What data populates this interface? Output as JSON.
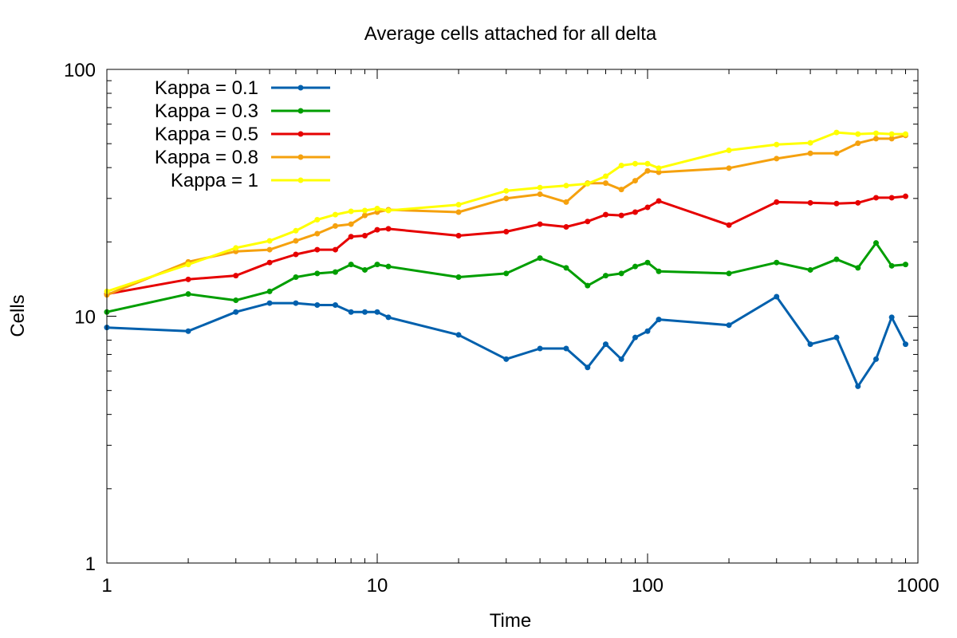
{
  "chart_data": {
    "type": "line",
    "title": "Average cells attached for all delta",
    "xlabel": "Time",
    "ylabel": "Cells",
    "xscale": "log",
    "yscale": "log",
    "xlim": [
      1,
      1000
    ],
    "ylim": [
      1,
      100
    ],
    "x_ticks": [
      1,
      10,
      100,
      1000
    ],
    "x_tick_labels": [
      "1",
      "10",
      "100",
      "1000"
    ],
    "y_ticks": [
      1,
      10,
      100
    ],
    "y_tick_labels": [
      "1",
      "10",
      "100"
    ],
    "grid": false,
    "legend_position": "top-left",
    "x": [
      1,
      2,
      3,
      4,
      5,
      6,
      7,
      8,
      9,
      10,
      11,
      20,
      30,
      40,
      50,
      60,
      70,
      80,
      90,
      100,
      110,
      200,
      300,
      400,
      500,
      600,
      700,
      800,
      900
    ],
    "series": [
      {
        "name": "Kappa = 0.1",
        "color": "#0060ad",
        "values": [
          9.0,
          8.7,
          10.4,
          11.3,
          11.3,
          11.1,
          11.1,
          10.4,
          10.4,
          10.4,
          9.9,
          8.4,
          6.7,
          7.4,
          7.4,
          6.2,
          7.7,
          6.7,
          8.2,
          8.7,
          9.7,
          9.2,
          12.0,
          7.7,
          8.2,
          5.2,
          6.7,
          9.9,
          7.7
        ]
      },
      {
        "name": "Kappa = 0.3",
        "color": "#009e00",
        "values": [
          10.4,
          12.3,
          11.6,
          12.6,
          14.4,
          14.9,
          15.1,
          16.2,
          15.4,
          16.2,
          15.9,
          14.4,
          14.9,
          17.2,
          15.7,
          13.3,
          14.6,
          14.9,
          15.9,
          16.5,
          15.2,
          14.9,
          16.5,
          15.4,
          17.0,
          15.7,
          19.8,
          16.0,
          16.2
        ]
      },
      {
        "name": "Kappa = 0.5",
        "color": "#e60000",
        "values": [
          12.3,
          14.1,
          14.6,
          16.5,
          17.8,
          18.6,
          18.6,
          21.0,
          21.2,
          22.4,
          22.6,
          21.2,
          22.0,
          23.6,
          23.0,
          24.2,
          25.8,
          25.6,
          26.4,
          27.6,
          29.3,
          23.4,
          29.0,
          28.8,
          28.6,
          28.8,
          30.2,
          30.2,
          30.6
        ]
      },
      {
        "name": "Kappa = 0.8",
        "color": "#f5a10e",
        "values": [
          12.2,
          16.6,
          18.3,
          18.6,
          20.2,
          21.6,
          23.2,
          23.6,
          25.6,
          26.4,
          27.0,
          26.4,
          30.0,
          31.2,
          29.0,
          34.6,
          34.6,
          32.6,
          35.4,
          38.8,
          38.3,
          39.8,
          43.5,
          45.7,
          45.7,
          50.2,
          52.4,
          52.4,
          54.0
        ]
      },
      {
        "name": "Kappa = 1",
        "color": "#ffff00",
        "values": [
          12.6,
          16.2,
          18.9,
          20.2,
          22.2,
          24.6,
          25.8,
          26.6,
          26.8,
          27.3,
          26.8,
          28.3,
          32.2,
          33.2,
          33.8,
          34.4,
          36.9,
          40.8,
          41.5,
          41.5,
          39.8,
          47.0,
          49.6,
          50.4,
          55.5,
          54.7,
          55.1,
          54.7,
          54.7
        ]
      }
    ]
  }
}
